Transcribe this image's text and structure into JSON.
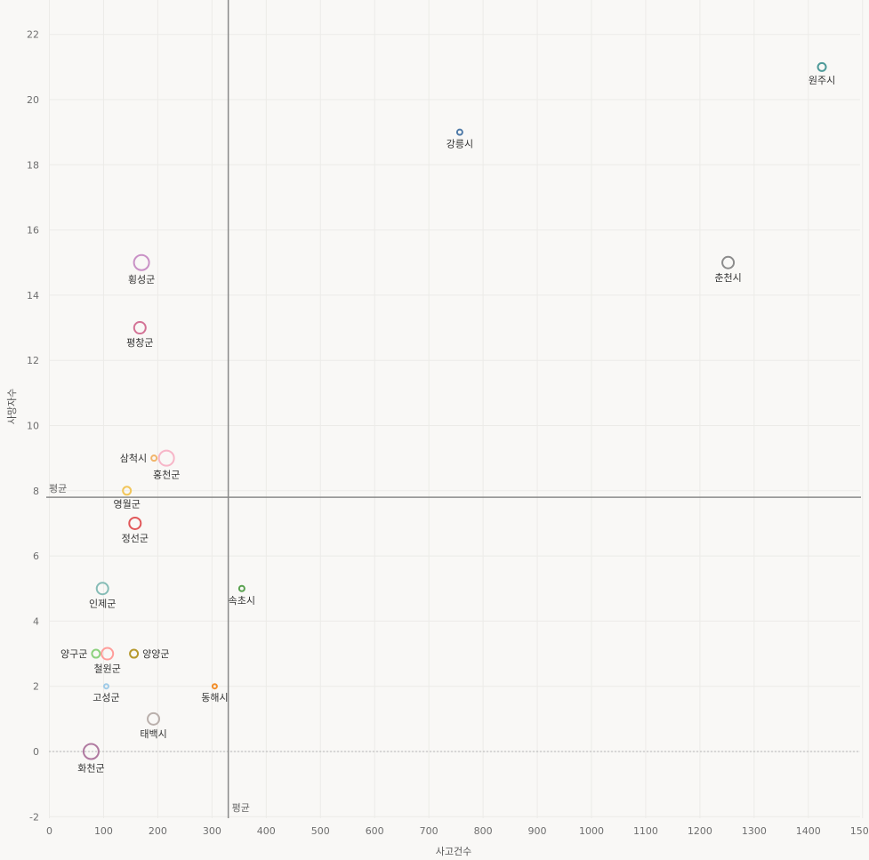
{
  "chart_data": {
    "type": "scatter",
    "xlabel": "사고건수",
    "ylabel": "사망자수",
    "xlim": [
      0,
      1500
    ],
    "ylim": [
      -2,
      22
    ],
    "xticks": [
      0,
      100,
      200,
      300,
      400,
      500,
      600,
      700,
      800,
      900,
      1000,
      1100,
      1200,
      1300,
      1400,
      1500
    ],
    "yticks": [
      -2,
      0,
      2,
      4,
      6,
      8,
      10,
      12,
      14,
      16,
      18,
      20,
      22
    ],
    "grid": true,
    "reference_lines": {
      "x_mean": {
        "label": "평균",
        "value": 330
      },
      "y_mean": {
        "label": "평균",
        "value": 7.8
      }
    },
    "points": [
      {
        "label": "원주시",
        "x": 1425,
        "y": 21,
        "color": "#4e9a99",
        "size": "medium",
        "label_pos": "below"
      },
      {
        "label": "강릉시",
        "x": 757,
        "y": 19,
        "color": "#4e79a7",
        "size": "small",
        "label_pos": "below"
      },
      {
        "label": "춘천시",
        "x": 1252,
        "y": 15,
        "color": "#8c8c8c",
        "size": "large",
        "label_pos": "below"
      },
      {
        "label": "횡성군",
        "x": 170,
        "y": 15,
        "color": "#c991c6",
        "size": "xlarge",
        "label_pos": "below"
      },
      {
        "label": "평창군",
        "x": 167,
        "y": 13,
        "color": "#d37295",
        "size": "large",
        "label_pos": "below"
      },
      {
        "label": "삼척시",
        "x": 193,
        "y": 9,
        "color": "#f1b46a",
        "size": "small",
        "label_pos": "left"
      },
      {
        "label": "홍천군",
        "x": 216,
        "y": 9,
        "color": "#f7b6c8",
        "size": "xlarge",
        "label_pos": "below"
      },
      {
        "label": "영월군",
        "x": 143,
        "y": 8,
        "color": "#f2c65b",
        "size": "medium",
        "label_pos": "below"
      },
      {
        "label": "정선군",
        "x": 158,
        "y": 7,
        "color": "#e15759",
        "size": "large",
        "label_pos": "below"
      },
      {
        "label": "인제군",
        "x": 98,
        "y": 5,
        "color": "#86bcb6",
        "size": "large",
        "label_pos": "below"
      },
      {
        "label": "속초시",
        "x": 355,
        "y": 5,
        "color": "#59a14f",
        "size": "small",
        "label_pos": "below"
      },
      {
        "label": "양구군",
        "x": 86,
        "y": 3,
        "color": "#8cd17d",
        "size": "medium",
        "label_pos": "left"
      },
      {
        "label": "철원군",
        "x": 107,
        "y": 3,
        "color": "#ff9d9a",
        "size": "large",
        "label_pos": "below"
      },
      {
        "label": "양양군",
        "x": 156,
        "y": 3,
        "color": "#b6992d",
        "size": "medium",
        "label_pos": "right"
      },
      {
        "label": "고성군",
        "x": 105,
        "y": 2,
        "color": "#a0cbe8",
        "size": "tiny",
        "label_pos": "below"
      },
      {
        "label": "동해시",
        "x": 305,
        "y": 2,
        "color": "#f28e2b",
        "size": "tiny",
        "label_pos": "below"
      },
      {
        "label": "태백시",
        "x": 192,
        "y": 1,
        "color": "#bab0ac",
        "size": "large",
        "label_pos": "below"
      },
      {
        "label": "화천군",
        "x": 77,
        "y": 0,
        "color": "#b07aa1",
        "size": "xlarge",
        "label_pos": "below"
      }
    ]
  }
}
